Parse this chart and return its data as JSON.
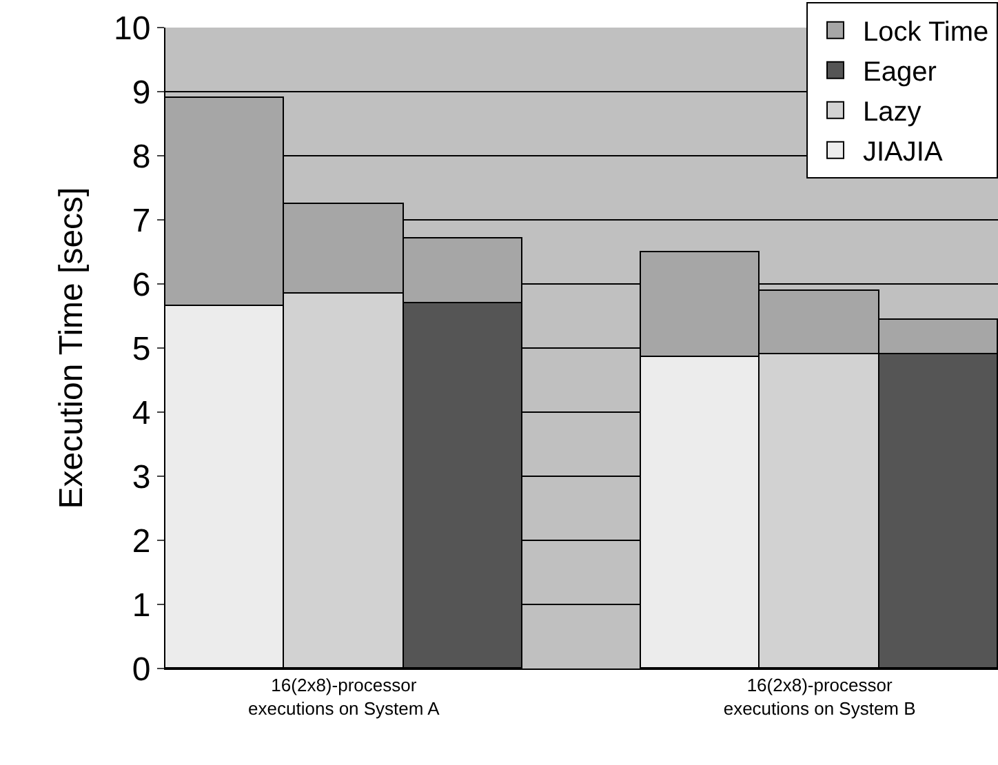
{
  "chart_data": {
    "type": "bar",
    "ylabel": "Execution Time [secs]",
    "categories": [
      null,
      "16(2x8)-processor\nexecutions on System A",
      null,
      null,
      null,
      "16(2x8)-processor\nexecutions on System B",
      null
    ],
    "stacked": true,
    "series": [
      {
        "name": "JIAJIA",
        "color": "#ececec",
        "values": [
          5.65,
          null,
          null,
          null,
          4.85,
          null,
          null
        ]
      },
      {
        "name": "Lazy",
        "color": "#d2d2d2",
        "values": [
          null,
          5.85,
          null,
          null,
          null,
          4.9,
          null
        ]
      },
      {
        "name": "Eager",
        "color": "#555555",
        "values": [
          null,
          null,
          5.7,
          null,
          null,
          null,
          4.9
        ]
      },
      {
        "name": "Lock Time",
        "color": "#a6a6a6",
        "values": [
          3.25,
          1.4,
          1.0,
          null,
          1.65,
          1.0,
          0.55
        ]
      }
    ],
    "ylim": [
      0,
      10
    ],
    "yticks": [
      0,
      1,
      2,
      3,
      4,
      5,
      6,
      7,
      8,
      9,
      10
    ],
    "grid": "y",
    "legend": "top right"
  }
}
